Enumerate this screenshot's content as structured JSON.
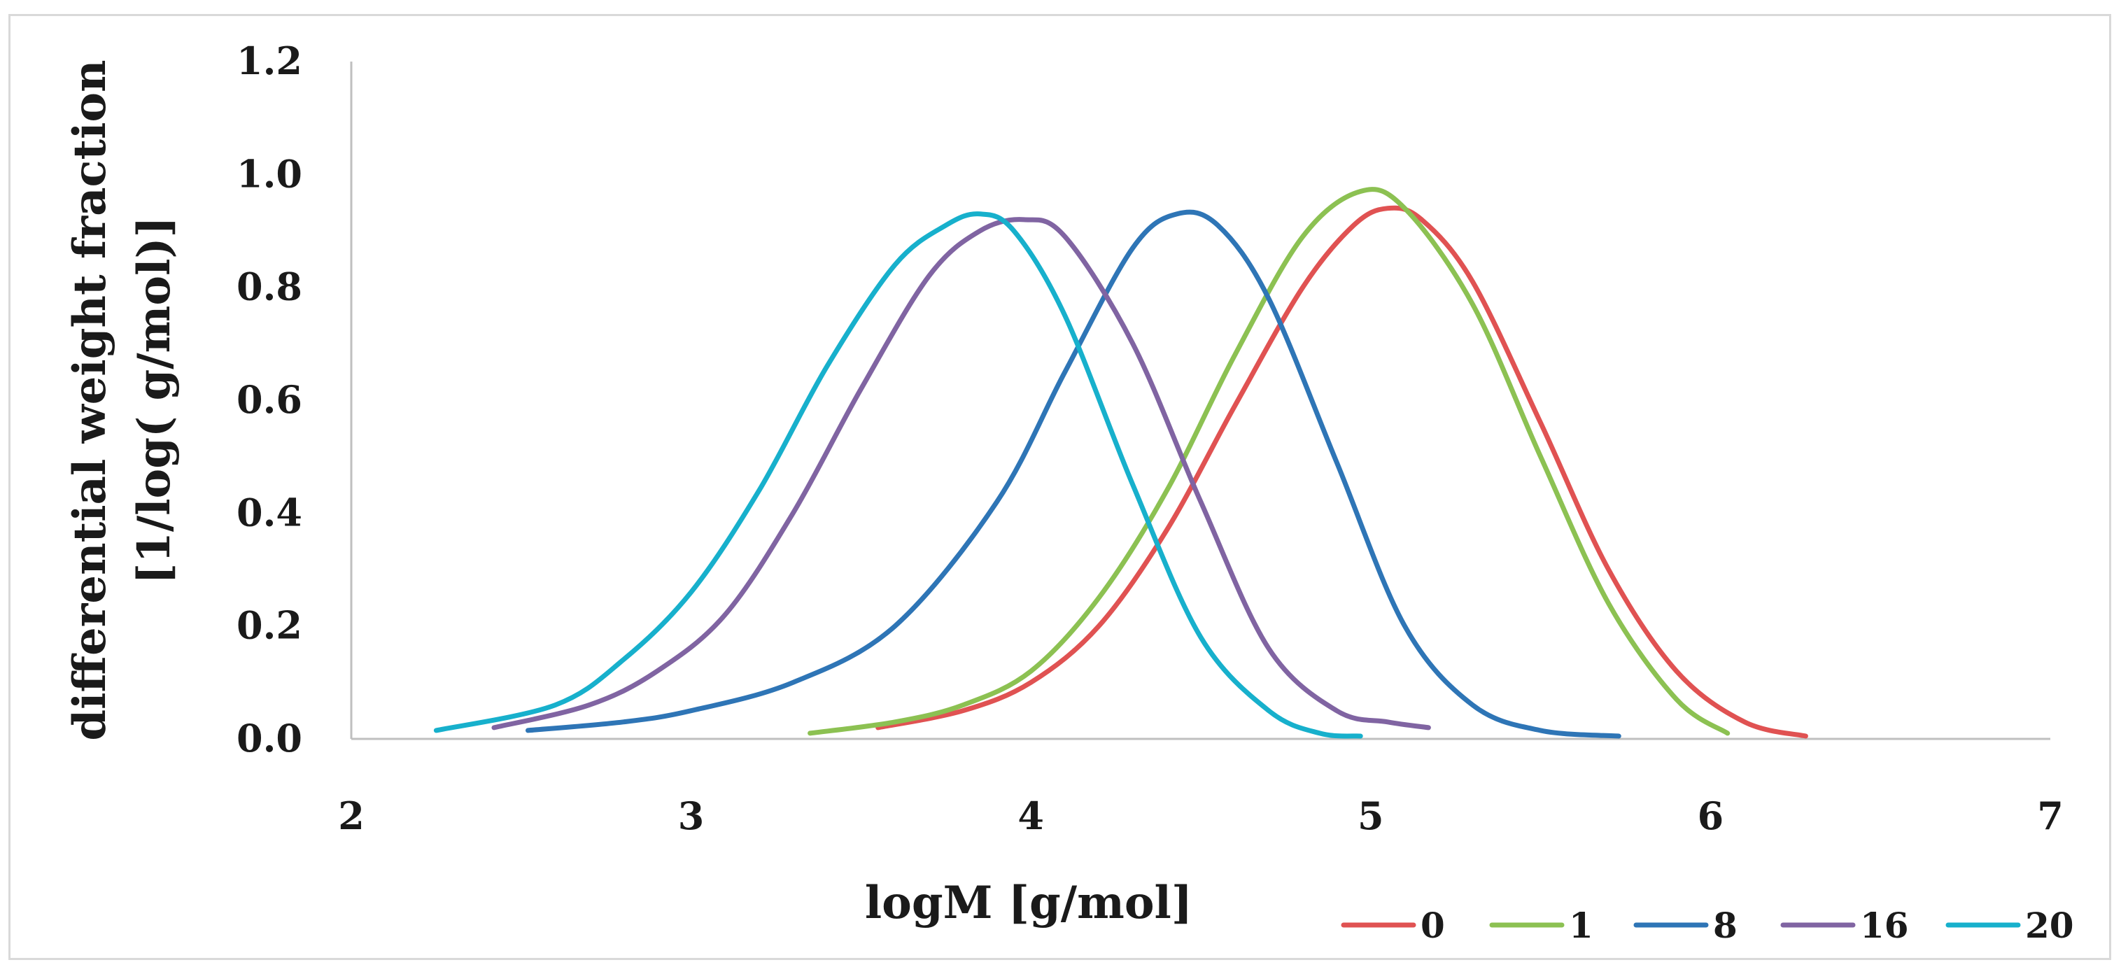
{
  "chart_data": {
    "type": "line",
    "title": "",
    "xlabel": "logM [g/mol]",
    "ylabel_lines": [
      "differential weight fraction",
      "[1/log( g/mol)]"
    ],
    "xlim": [
      2,
      7
    ],
    "ylim": [
      0,
      1.2
    ],
    "x_ticks": [
      "2",
      "3",
      "4",
      "5",
      "6",
      "7"
    ],
    "y_ticks": [
      "0.0",
      "0.2",
      "0.4",
      "0.6",
      "0.8",
      "1.0",
      "1.2"
    ],
    "grid": false,
    "legend_position": "bottom-right",
    "series": [
      {
        "name": "0",
        "color": "#e05252",
        "x": [
          3.55,
          3.8,
          4.0,
          4.2,
          4.4,
          4.6,
          4.8,
          4.95,
          5.05,
          5.15,
          5.3,
          5.5,
          5.7,
          5.9,
          6.1,
          6.28
        ],
        "y": [
          0.02,
          0.05,
          0.1,
          0.2,
          0.37,
          0.59,
          0.8,
          0.91,
          0.94,
          0.92,
          0.81,
          0.56,
          0.3,
          0.12,
          0.03,
          0.005
        ]
      },
      {
        "name": "1",
        "color": "#8cc152",
        "x": [
          3.35,
          3.6,
          3.8,
          4.0,
          4.2,
          4.4,
          4.6,
          4.8,
          4.97,
          5.1,
          5.3,
          5.5,
          5.7,
          5.9,
          6.05
        ],
        "y": [
          0.01,
          0.03,
          0.06,
          0.12,
          0.25,
          0.44,
          0.68,
          0.89,
          0.97,
          0.94,
          0.77,
          0.5,
          0.24,
          0.07,
          0.01
        ]
      },
      {
        "name": "8",
        "color": "#2e75b6",
        "x": [
          2.52,
          2.8,
          3.0,
          3.3,
          3.6,
          3.9,
          4.1,
          4.3,
          4.43,
          4.55,
          4.7,
          4.9,
          5.1,
          5.3,
          5.5,
          5.73
        ],
        "y": [
          0.015,
          0.03,
          0.05,
          0.1,
          0.2,
          0.42,
          0.65,
          0.87,
          0.93,
          0.91,
          0.78,
          0.49,
          0.2,
          0.06,
          0.015,
          0.005
        ]
      },
      {
        "name": "16",
        "color": "#8064a2",
        "x": [
          2.42,
          2.7,
          2.9,
          3.1,
          3.3,
          3.5,
          3.7,
          3.85,
          3.98,
          4.1,
          4.3,
          4.5,
          4.7,
          4.9,
          5.05,
          5.17
        ],
        "y": [
          0.02,
          0.06,
          0.12,
          0.22,
          0.4,
          0.62,
          0.82,
          0.9,
          0.92,
          0.89,
          0.7,
          0.42,
          0.16,
          0.05,
          0.03,
          0.02
        ]
      },
      {
        "name": "20",
        "color": "#17b0cc",
        "x": [
          2.25,
          2.6,
          2.8,
          3.0,
          3.2,
          3.4,
          3.6,
          3.75,
          3.85,
          3.95,
          4.1,
          4.3,
          4.5,
          4.7,
          4.85,
          4.97
        ],
        "y": [
          0.015,
          0.06,
          0.14,
          0.26,
          0.44,
          0.66,
          0.84,
          0.91,
          0.93,
          0.9,
          0.75,
          0.45,
          0.18,
          0.05,
          0.01,
          0.005
        ]
      }
    ]
  }
}
